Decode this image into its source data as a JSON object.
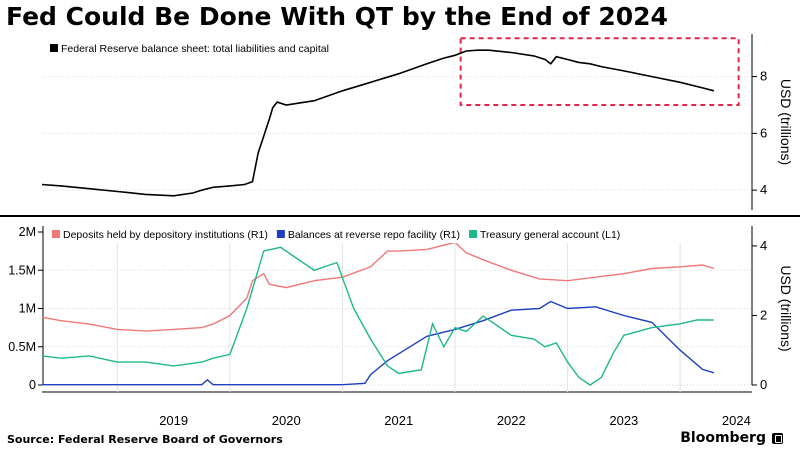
{
  "title": "Fed Could Be Done With QT by the End of 2024",
  "source": "Source: Federal Reserve Board of Governors",
  "brand": "Bloomberg",
  "chart_data": [
    {
      "type": "line",
      "series": [
        {
          "name": "Federal Reserve balance sheet: total liabilities and capital",
          "color": "#000000",
          "x": [
            2018.33,
            2018.5,
            2018.75,
            2019.0,
            2019.25,
            2019.5,
            2019.67,
            2019.75,
            2019.85,
            2020.0,
            2020.13,
            2020.2,
            2020.25,
            2020.3,
            2020.35,
            2020.38,
            2020.42,
            2020.5,
            2020.75,
            2021.0,
            2021.25,
            2021.5,
            2021.75,
            2021.9,
            2022.0,
            2022.1,
            2022.2,
            2022.3,
            2022.5,
            2022.7,
            2022.8,
            2022.85,
            2022.9,
            2023.0,
            2023.1,
            2023.2,
            2023.3,
            2023.5,
            2023.75,
            2024.0,
            2024.2,
            2024.3
          ],
          "values": [
            4.2,
            4.15,
            4.05,
            3.95,
            3.85,
            3.8,
            3.9,
            4.0,
            4.1,
            4.15,
            4.2,
            4.3,
            5.3,
            5.9,
            6.5,
            6.9,
            7.1,
            7.0,
            7.15,
            7.5,
            7.8,
            8.1,
            8.45,
            8.65,
            8.75,
            8.9,
            8.93,
            8.93,
            8.85,
            8.73,
            8.6,
            8.45,
            8.7,
            8.6,
            8.5,
            8.45,
            8.35,
            8.2,
            8.0,
            7.8,
            7.6,
            7.5
          ]
        }
      ],
      "ylabel": "USD (trillions)",
      "yticks": [
        4,
        6,
        8
      ],
      "ylim": [
        3.3,
        9.5
      ],
      "xlim": [
        2018.33,
        2024.55
      ],
      "highlight": {
        "x": [
          2022.05,
          2024.52
        ],
        "y": [
          7.0,
          9.35
        ],
        "style": "dashed",
        "color": "#e0274a"
      }
    },
    {
      "type": "line",
      "series": [
        {
          "name": "Deposits held by depository institutions (R1)",
          "axis": "right",
          "color": "#f07878",
          "x": [
            2018.33,
            2018.5,
            2018.75,
            2019.0,
            2019.25,
            2019.5,
            2019.75,
            2019.85,
            2020.0,
            2020.15,
            2020.2,
            2020.25,
            2020.3,
            2020.35,
            2020.5,
            2020.75,
            2021.0,
            2021.25,
            2021.4,
            2021.5,
            2021.75,
            2022.0,
            2022.1,
            2022.25,
            2022.5,
            2022.75,
            2023.0,
            2023.25,
            2023.5,
            2023.75,
            2024.0,
            2024.2,
            2024.3
          ],
          "values": [
            1.95,
            1.85,
            1.75,
            1.6,
            1.55,
            1.6,
            1.65,
            1.75,
            2.0,
            2.5,
            3.0,
            3.1,
            3.2,
            2.9,
            2.8,
            3.0,
            3.1,
            3.4,
            3.85,
            3.85,
            3.9,
            4.1,
            3.8,
            3.6,
            3.3,
            3.05,
            3.0,
            3.1,
            3.2,
            3.35,
            3.4,
            3.45,
            3.35
          ]
        },
        {
          "name": "Balances at reverse repo facility (R1)",
          "axis": "right",
          "color": "#1f3fbf",
          "x": [
            2018.33,
            2019.0,
            2019.5,
            2019.75,
            2019.8,
            2019.85,
            2020.0,
            2020.5,
            2021.0,
            2021.2,
            2021.25,
            2021.4,
            2021.5,
            2021.75,
            2022.0,
            2022.25,
            2022.5,
            2022.75,
            2022.85,
            2023.0,
            2023.25,
            2023.5,
            2023.75,
            2024.0,
            2024.2,
            2024.3
          ],
          "values": [
            0.01,
            0.01,
            0.01,
            0.01,
            0.15,
            0.01,
            0.01,
            0.01,
            0.01,
            0.05,
            0.3,
            0.7,
            0.9,
            1.4,
            1.6,
            1.85,
            2.15,
            2.2,
            2.4,
            2.2,
            2.25,
            2.0,
            1.8,
            1.0,
            0.45,
            0.35
          ]
        },
        {
          "name": "Treasury general account (L1)",
          "axis": "left",
          "color": "#1fb88c",
          "x": [
            2018.33,
            2018.5,
            2018.75,
            2019.0,
            2019.25,
            2019.5,
            2019.75,
            2019.85,
            2020.0,
            2020.15,
            2020.3,
            2020.45,
            2020.55,
            2020.75,
            2020.85,
            2020.95,
            2021.1,
            2021.25,
            2021.4,
            2021.5,
            2021.7,
            2021.8,
            2021.9,
            2022.0,
            2022.1,
            2022.25,
            2022.5,
            2022.7,
            2022.8,
            2022.9,
            2023.0,
            2023.1,
            2023.2,
            2023.3,
            2023.4,
            2023.5,
            2023.75,
            2024.0,
            2024.15,
            2024.3
          ],
          "values": [
            0.38,
            0.35,
            0.38,
            0.3,
            0.3,
            0.25,
            0.3,
            0.35,
            0.4,
            1.0,
            1.75,
            1.8,
            1.7,
            1.5,
            1.55,
            1.6,
            1.0,
            0.6,
            0.25,
            0.15,
            0.2,
            0.8,
            0.5,
            0.75,
            0.7,
            0.9,
            0.65,
            0.6,
            0.5,
            0.55,
            0.3,
            0.1,
            0.0,
            0.1,
            0.4,
            0.65,
            0.75,
            0.8,
            0.85,
            0.85
          ]
        }
      ],
      "xticks": [
        "2019",
        "2020",
        "2021",
        "2022",
        "2023",
        "2024"
      ],
      "yticks_left": [
        "0",
        "0.5M",
        "1M",
        "1.5M",
        "2M"
      ],
      "ylim_left": [
        0,
        2.0
      ],
      "ylabel_right": "USD (trillions)",
      "yticks_right": [
        "0",
        "2",
        "4"
      ],
      "ylim_right": [
        0,
        4.4
      ],
      "xlim": [
        2018.33,
        2024.55
      ]
    }
  ]
}
